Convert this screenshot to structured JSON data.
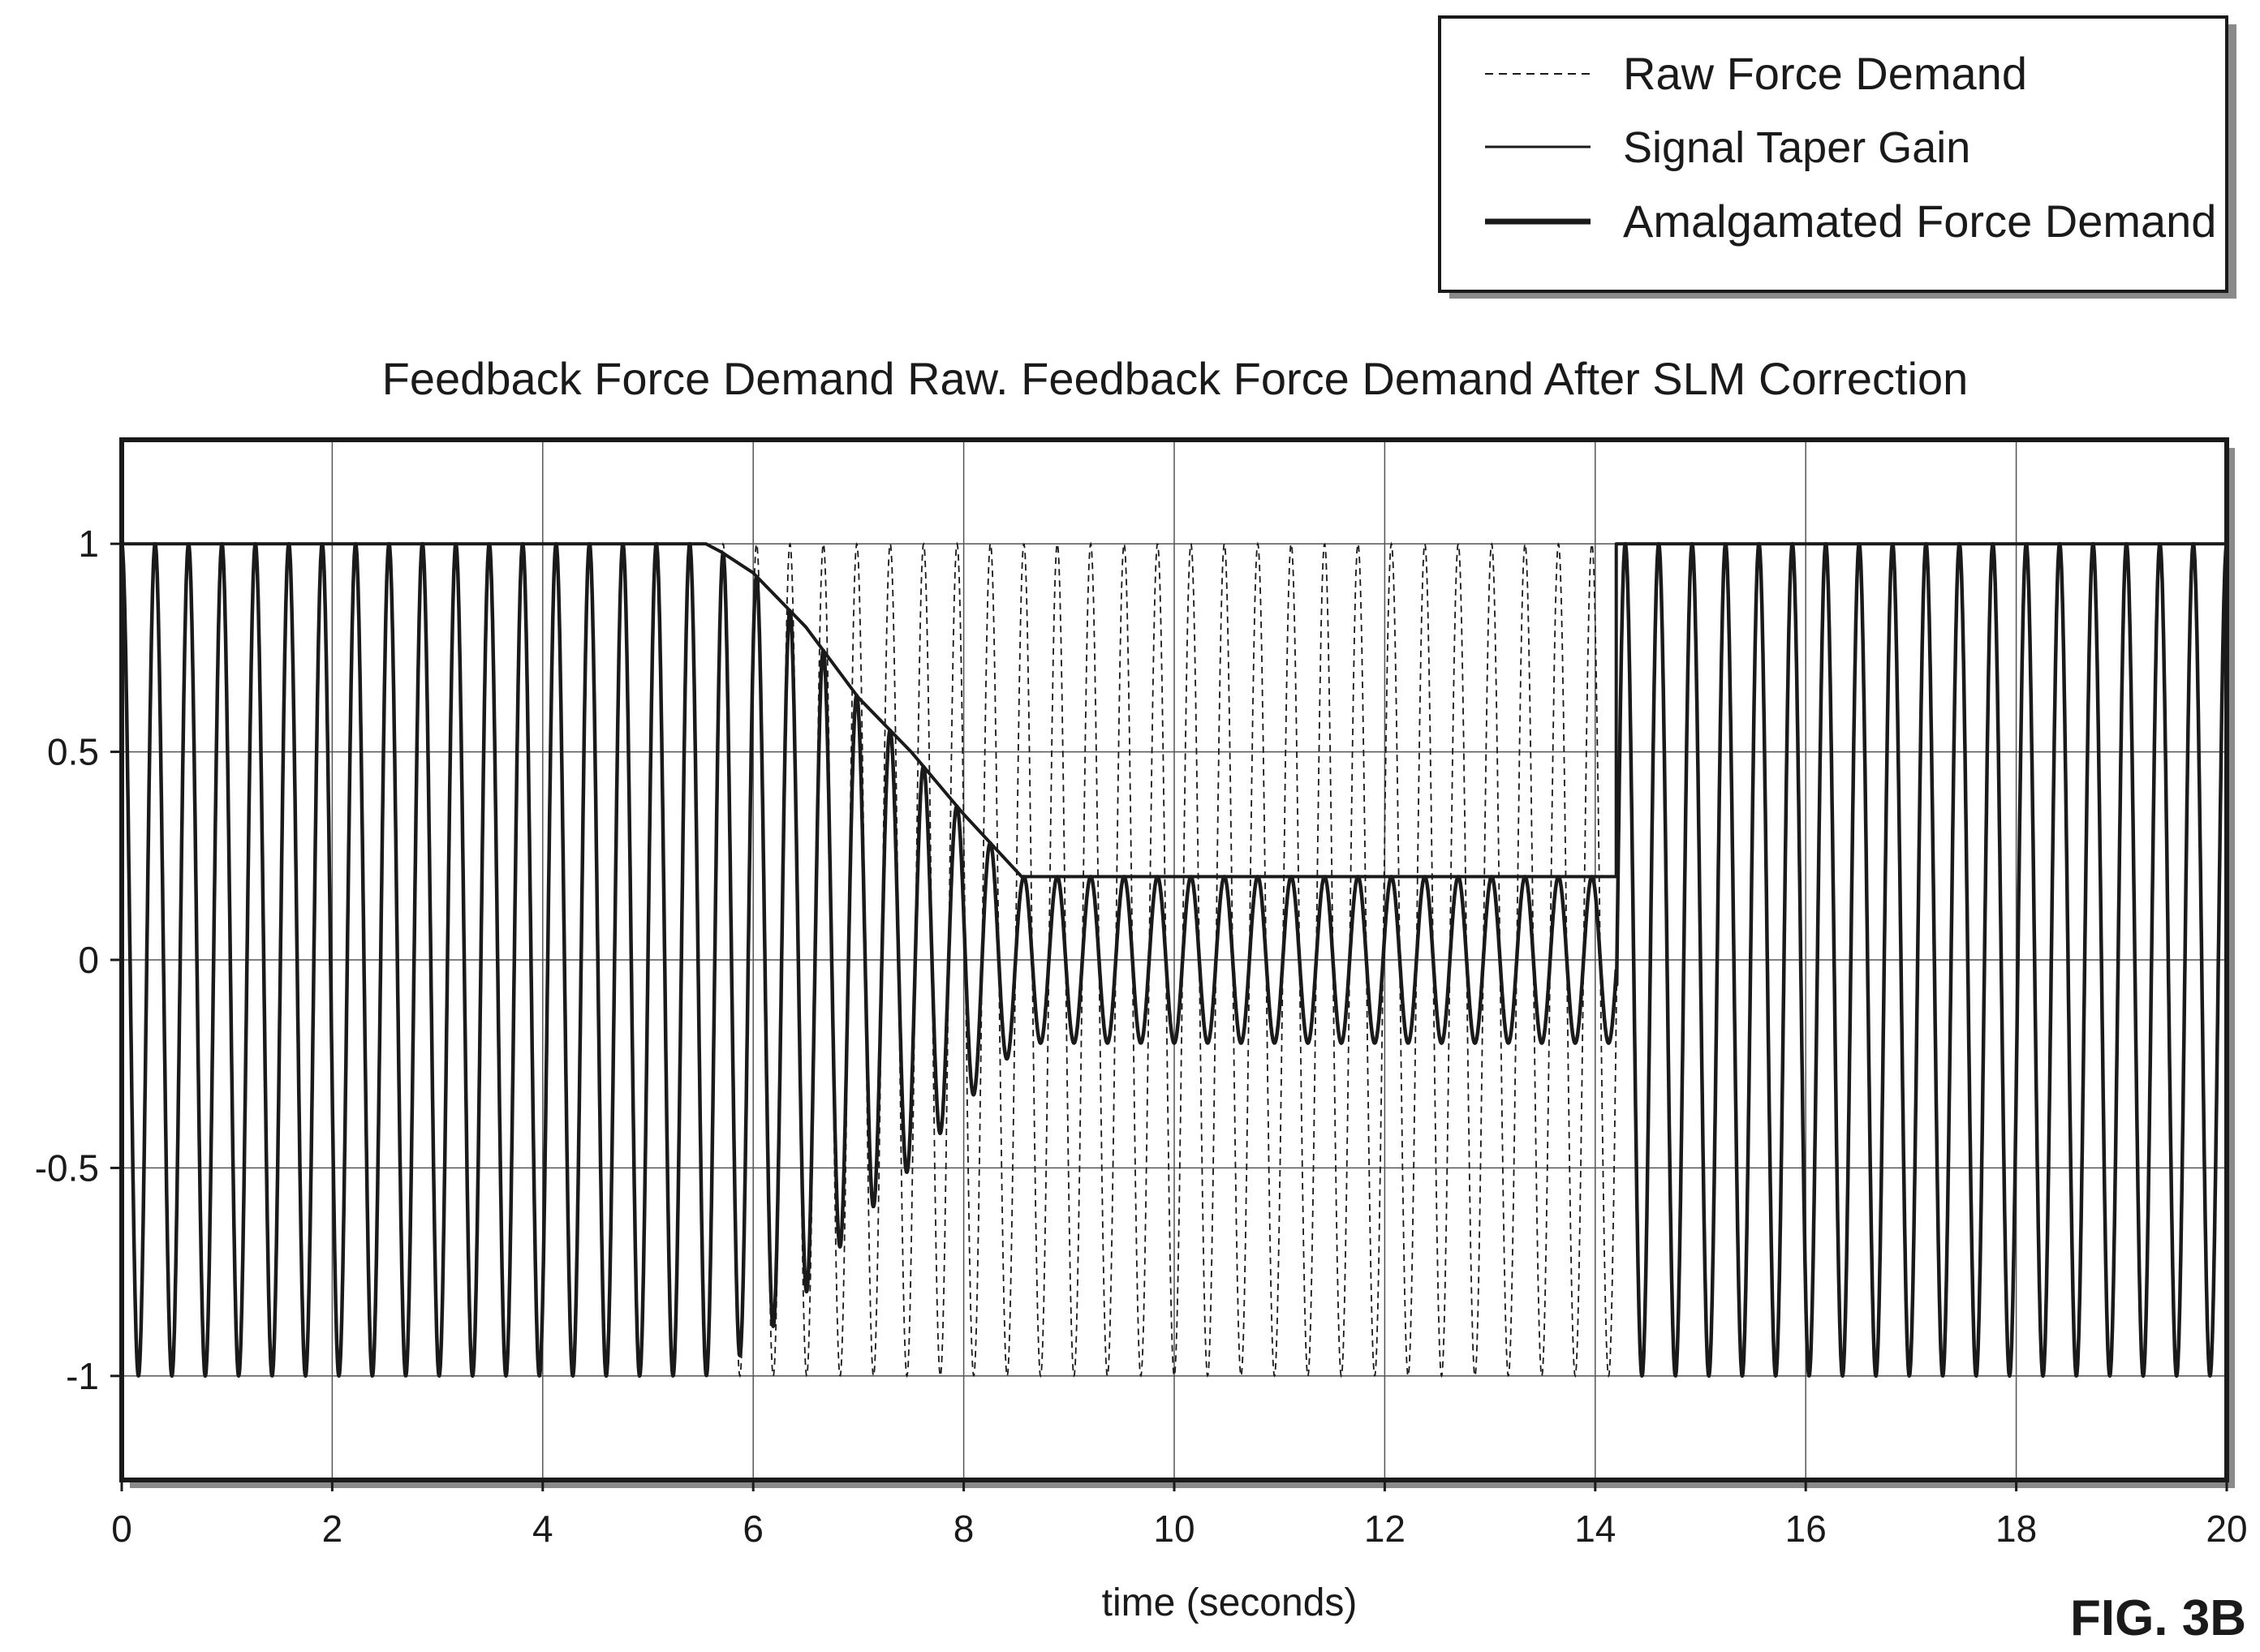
{
  "figure_label": "FIG. 3B",
  "colors": {
    "ink": "#1a1a1a",
    "grid": "#555555",
    "background": "#ffffff"
  },
  "chart_data": {
    "type": "line",
    "title": "Feedback Force Demand Raw. Feedback Force Demand After SLM Correction",
    "xlabel": "time (seconds)",
    "ylabel": "",
    "xlim": [
      0,
      20
    ],
    "ylim": [
      -1.25,
      1.25
    ],
    "grid": true,
    "legend_position": "top-right",
    "x_ticks": [
      0,
      2,
      4,
      6,
      8,
      10,
      12,
      14,
      16,
      18,
      20
    ],
    "x_tick_labels": [
      "0",
      "2",
      "4",
      "6",
      "8",
      "10",
      "12",
      "14",
      "16",
      "18",
      "20"
    ],
    "y_ticks": [
      1,
      0.5,
      0,
      -0.5,
      -1
    ],
    "y_tick_labels": [
      "1",
      "0.5",
      "0",
      "-0.5",
      "-1"
    ],
    "series": [
      {
        "name": "Raw Force Demand",
        "style": "dashed",
        "description_values": {
          "waveform": "sine",
          "amplitude": 1.0,
          "frequency_hz": 3.15,
          "x_range": [
            0,
            20
          ]
        }
      },
      {
        "name": "Signal Taper Gain",
        "style": "thin-solid",
        "points": [
          [
            0,
            1.0
          ],
          [
            5.55,
            1.0
          ],
          [
            5.7,
            0.98
          ],
          [
            6.0,
            0.93
          ],
          [
            6.5,
            0.8
          ],
          [
            7.0,
            0.63
          ],
          [
            7.5,
            0.5
          ],
          [
            8.0,
            0.35
          ],
          [
            8.55,
            0.2
          ],
          [
            14.2,
            0.2
          ],
          [
            14.2,
            1.0
          ],
          [
            20,
            1.0
          ]
        ]
      },
      {
        "name": "Amalgamated Force Demand",
        "style": "thick-solid",
        "points": [
          [
            0,
            1.0
          ],
          [
            5.55,
            1.0
          ],
          [
            5.7,
            0.98
          ],
          [
            6.0,
            0.93
          ],
          [
            6.5,
            0.8
          ],
          [
            7.0,
            0.63
          ],
          [
            7.5,
            0.5
          ],
          [
            8.0,
            0.35
          ],
          [
            8.55,
            0.2
          ],
          [
            14.2,
            0.2
          ],
          [
            14.2,
            1.0
          ],
          [
            20,
            1.0
          ]
        ]
      }
    ]
  }
}
